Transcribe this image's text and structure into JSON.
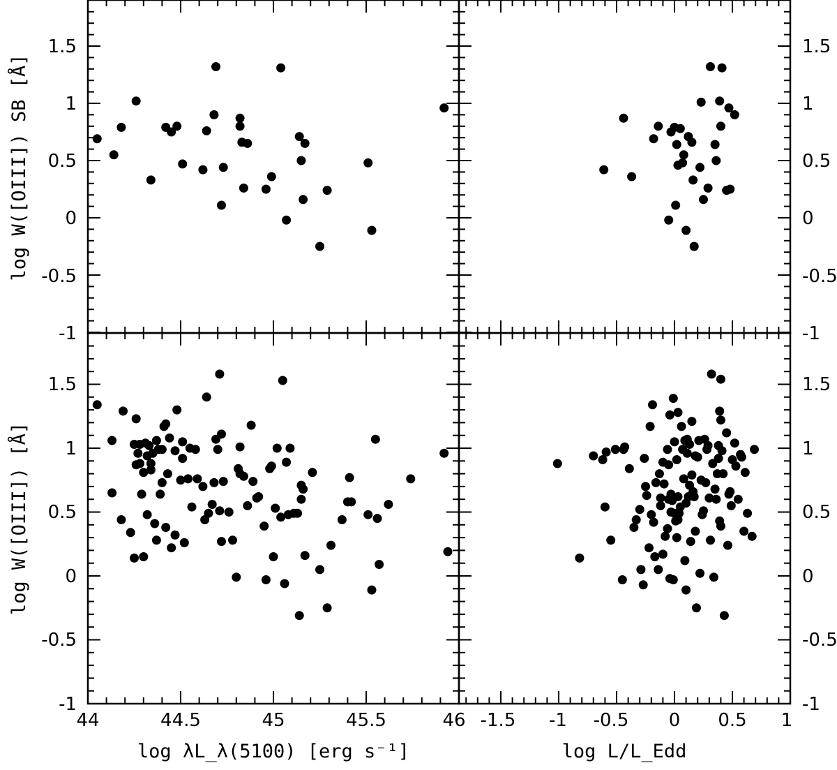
{
  "chart_data": [
    {
      "type": "scatter",
      "panel": "top-left",
      "ylabel": "log W([OIII]) SB [Å]",
      "xlim": [
        44,
        46
      ],
      "ylim": [
        -1,
        1.9
      ],
      "x": [
        44.05,
        44.14,
        44.18,
        44.26,
        44.34,
        44.42,
        44.45,
        44.48,
        44.51,
        44.62,
        44.64,
        44.68,
        44.69,
        44.72,
        44.73,
        44.82,
        44.82,
        44.83,
        44.84,
        44.86,
        44.96,
        44.99,
        45.04,
        45.07,
        45.14,
        45.15,
        45.16,
        45.17,
        45.25,
        45.29,
        45.51,
        45.53,
        45.92
      ],
      "y": [
        0.69,
        0.55,
        0.79,
        1.02,
        0.33,
        0.79,
        0.75,
        0.8,
        0.47,
        0.42,
        0.76,
        0.9,
        1.32,
        0.11,
        0.44,
        0.8,
        0.87,
        0.66,
        0.26,
        0.65,
        0.25,
        0.36,
        1.31,
        -0.02,
        0.71,
        0.5,
        0.16,
        0.65,
        -0.25,
        0.24,
        0.48,
        -0.11,
        0.96
      ]
    },
    {
      "type": "scatter",
      "panel": "top-right",
      "xlim": [
        -2,
        1
      ],
      "ylim": [
        -1,
        1.9
      ],
      "x": [
        -0.61,
        -0.44,
        -0.37,
        -0.18,
        -0.14,
        -0.05,
        -0.03,
        0.0,
        0.01,
        0.02,
        0.03,
        0.05,
        0.07,
        0.08,
        0.1,
        0.12,
        0.15,
        0.16,
        0.17,
        0.22,
        0.23,
        0.25,
        0.29,
        0.31,
        0.35,
        0.36,
        0.39,
        0.4,
        0.41,
        0.45,
        0.47,
        0.48,
        0.52
      ],
      "y": [
        0.42,
        0.87,
        0.36,
        0.69,
        0.8,
        -0.02,
        0.75,
        0.79,
        0.11,
        0.64,
        0.46,
        0.78,
        0.48,
        0.55,
        -0.11,
        0.71,
        0.66,
        0.33,
        -0.25,
        0.44,
        1.01,
        0.16,
        0.26,
        1.32,
        0.64,
        0.5,
        1.02,
        0.8,
        1.31,
        0.24,
        0.96,
        0.25,
        0.9
      ]
    },
    {
      "type": "scatter",
      "panel": "bottom-left",
      "ylabel": "log W([OIII]) [Å]",
      "xlabel": "log λL_λ(5100) [erg s⁻¹]",
      "xlim": [
        44,
        46
      ],
      "ylim": [
        -1,
        1.9
      ],
      "x": [
        44.05,
        44.13,
        44.13,
        44.18,
        44.19,
        44.23,
        44.25,
        44.25,
        44.26,
        44.26,
        44.27,
        44.28,
        44.28,
        44.29,
        44.3,
        44.3,
        44.31,
        44.32,
        44.32,
        44.33,
        44.34,
        44.34,
        44.35,
        44.36,
        44.37,
        44.37,
        44.38,
        44.39,
        44.4,
        44.4,
        44.41,
        44.42,
        44.42,
        44.43,
        44.44,
        44.45,
        44.47,
        44.47,
        44.48,
        44.5,
        44.51,
        44.51,
        44.52,
        44.54,
        44.55,
        44.56,
        44.58,
        44.59,
        44.62,
        44.63,
        44.64,
        44.65,
        44.67,
        44.68,
        44.69,
        44.7,
        44.71,
        44.71,
        44.72,
        44.72,
        44.73,
        44.76,
        44.78,
        44.8,
        44.81,
        44.82,
        44.82,
        44.84,
        44.86,
        44.88,
        44.89,
        44.91,
        44.92,
        44.95,
        44.96,
        44.98,
        44.99,
        45.0,
        45.01,
        45.02,
        45.04,
        45.05,
        45.06,
        45.07,
        45.08,
        45.09,
        45.11,
        45.13,
        45.14,
        45.15,
        45.15,
        45.16,
        45.17,
        45.21,
        45.25,
        45.29,
        45.31,
        45.37,
        45.4,
        45.41,
        45.42,
        45.51,
        45.53,
        45.55,
        45.56,
        45.57,
        45.62,
        45.74,
        45.92,
        45.94
      ],
      "y": [
        1.34,
        1.06,
        0.65,
        0.44,
        1.29,
        0.34,
        1.03,
        0.14,
        1.23,
        0.87,
        0.96,
        1.03,
        0.88,
        0.64,
        0.15,
        0.81,
        1.04,
        0.48,
        0.94,
        1.02,
        0.83,
        0.88,
        0.96,
        0.41,
        0.28,
        1.06,
        0.99,
        0.64,
        0.73,
        0.99,
        1.17,
        0.38,
        1.19,
        0.8,
        1.08,
        0.22,
        0.32,
        0.98,
        1.3,
        0.75,
        0.92,
        1.05,
        0.26,
        0.76,
        1.0,
        0.54,
        0.99,
        0.76,
        0.7,
        0.44,
        1.4,
        0.49,
        0.56,
        0.73,
        1.07,
        0.99,
        1.58,
        0.51,
        0.27,
        1.11,
        0.74,
        0.5,
        0.28,
        -0.01,
        0.84,
        1.01,
        0.8,
        0.78,
        0.55,
        1.18,
        0.74,
        0.61,
        0.62,
        0.39,
        -0.03,
        0.84,
        0.86,
        0.15,
        0.53,
        1.0,
        0.46,
        1.53,
        -0.06,
        0.89,
        0.48,
        1.0,
        0.49,
        0.49,
        -0.31,
        0.71,
        0.6,
        0.68,
        0.16,
        0.81,
        0.05,
        -0.25,
        0.24,
        0.44,
        0.58,
        0.77,
        0.58,
        0.48,
        -0.11,
        1.07,
        0.45,
        0.09,
        0.56,
        0.76,
        0.96,
        0.19
      ]
    },
    {
      "type": "scatter",
      "panel": "bottom-right",
      "xlabel": "log L/L_Edd",
      "xlim": [
        -2,
        1
      ],
      "ylim": [
        -1,
        1.9
      ],
      "x": [
        -1.01,
        -0.82,
        -0.7,
        -0.62,
        -0.6,
        -0.59,
        -0.55,
        -0.51,
        -0.45,
        -0.44,
        -0.43,
        -0.39,
        -0.35,
        -0.33,
        -0.3,
        -0.29,
        -0.27,
        -0.26,
        -0.25,
        -0.24,
        -0.22,
        -0.21,
        -0.2,
        -0.19,
        -0.18,
        -0.17,
        -0.16,
        -0.14,
        -0.13,
        -0.12,
        -0.12,
        -0.1,
        -0.1,
        -0.09,
        -0.08,
        -0.06,
        -0.06,
        -0.05,
        -0.05,
        -0.04,
        -0.04,
        -0.03,
        -0.03,
        -0.02,
        -0.01,
        -0.01,
        0.0,
        0.0,
        0.01,
        0.02,
        0.02,
        0.03,
        0.03,
        0.03,
        0.04,
        0.05,
        0.06,
        0.07,
        0.08,
        0.09,
        0.09,
        0.1,
        0.1,
        0.11,
        0.11,
        0.12,
        0.13,
        0.13,
        0.14,
        0.15,
        0.15,
        0.16,
        0.17,
        0.18,
        0.18,
        0.19,
        0.2,
        0.21,
        0.22,
        0.23,
        0.24,
        0.25,
        0.26,
        0.27,
        0.28,
        0.29,
        0.3,
        0.31,
        0.32,
        0.33,
        0.34,
        0.35,
        0.36,
        0.37,
        0.38,
        0.38,
        0.39,
        0.39,
        0.4,
        0.4,
        0.4,
        0.41,
        0.42,
        0.43,
        0.45,
        0.46,
        0.47,
        0.48,
        0.49,
        0.5,
        0.52,
        0.53,
        0.55,
        0.57,
        0.58,
        0.6,
        0.61,
        0.63,
        0.67,
        0.69
      ],
      "y": [
        0.88,
        0.14,
        0.94,
        0.91,
        0.54,
        0.97,
        0.28,
        0.99,
        -0.03,
        0.99,
        1.01,
        0.84,
        0.38,
        0.44,
        0.52,
        0.05,
        -0.07,
        0.92,
        0.7,
        0.63,
        0.22,
        1.17,
        0.48,
        1.34,
        0.42,
        0.15,
        0.73,
        0.05,
        0.8,
        0.61,
        0.55,
        0.17,
        0.89,
        0.72,
        0.31,
        0.99,
        0.37,
        0.6,
        0.87,
        1.26,
        -0.02,
        0.5,
        0.64,
        0.59,
        1.39,
        -0.03,
        1.05,
        0.49,
        0.43,
        0.3,
        0.91,
        1.28,
        0.62,
        0.44,
        0.49,
        0.54,
        1.17,
        0.99,
        0.76,
        0.12,
        1.06,
        -0.11,
        0.57,
        0.96,
        1.07,
        0.62,
        0.71,
        1.03,
        0.27,
        0.79,
        1.21,
        0.66,
        0.62,
        0.94,
        0.35,
        -0.25,
        0.93,
        1.06,
        0.02,
        0.75,
        0.48,
        0.51,
        1.07,
        0.73,
        0.99,
        1.02,
        0.61,
        0.28,
        1.58,
        0.88,
        -0.01,
        0.68,
        0.6,
        0.8,
        1.02,
        0.92,
        1.29,
        0.43,
        1.22,
        0.39,
        1.54,
        0.98,
        0.8,
        -0.31,
        1.12,
        0.24,
        0.64,
        0.66,
        0.55,
        0.91,
        1.04,
        0.86,
        0.6,
        0.95,
        0.93,
        0.35,
        0.81,
        0.49,
        0.31,
        0.99
      ]
    }
  ],
  "axes": {
    "ytick_labels": [
      "-1",
      "-0.5",
      "0",
      "0.5",
      "1",
      "1.5"
    ],
    "xtick_labels_left": [
      "44",
      "44.5",
      "45",
      "45.5",
      "46"
    ],
    "xtick_labels_right": [
      "-1.5",
      "-1",
      "-0.5",
      "0",
      "0.5",
      "1"
    ]
  },
  "colors": {
    "marker": "#000000",
    "frame": "#000000",
    "background": "#ffffff"
  }
}
